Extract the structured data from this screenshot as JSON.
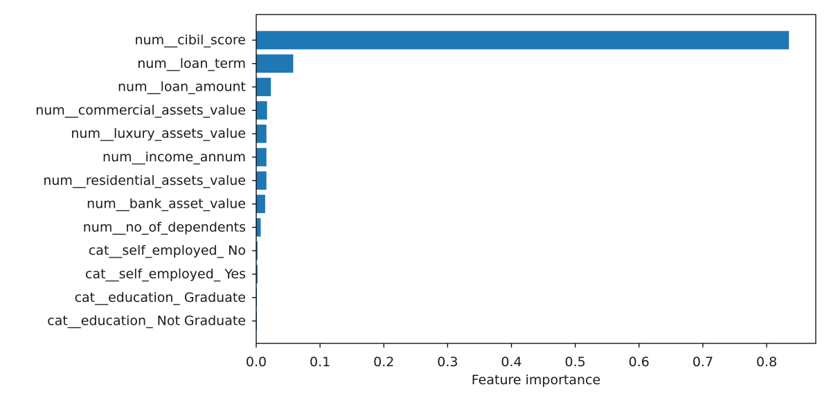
{
  "chart_data": {
    "type": "bar",
    "orientation": "horizontal",
    "categories": [
      "num__cibil_score",
      "num__loan_term",
      "num__loan_amount",
      "num__commercial_assets_value",
      "num__luxury_assets_value",
      "num__income_annum",
      "num__residential_assets_value",
      "num__bank_asset_value",
      "num__no_of_dependents",
      "cat__self_employed_ No",
      "cat__self_employed_ Yes",
      "cat__education_ Graduate",
      "cat__education_ Not Graduate"
    ],
    "values": [
      0.835,
      0.058,
      0.023,
      0.017,
      0.016,
      0.016,
      0.016,
      0.014,
      0.007,
      0.002,
      0.002,
      0.001,
      0.001
    ],
    "title": "",
    "xlabel": "Feature importance",
    "ylabel": "",
    "xlim": [
      0,
      0.877
    ],
    "xticks": [
      0.0,
      0.1,
      0.2,
      0.3,
      0.4,
      0.5,
      0.6,
      0.7,
      0.8
    ],
    "xtick_labels": [
      "0.0",
      "0.1",
      "0.2",
      "0.3",
      "0.4",
      "0.5",
      "0.6",
      "0.7",
      "0.8"
    ],
    "grid": false,
    "bar_color": "#1f77b4"
  }
}
